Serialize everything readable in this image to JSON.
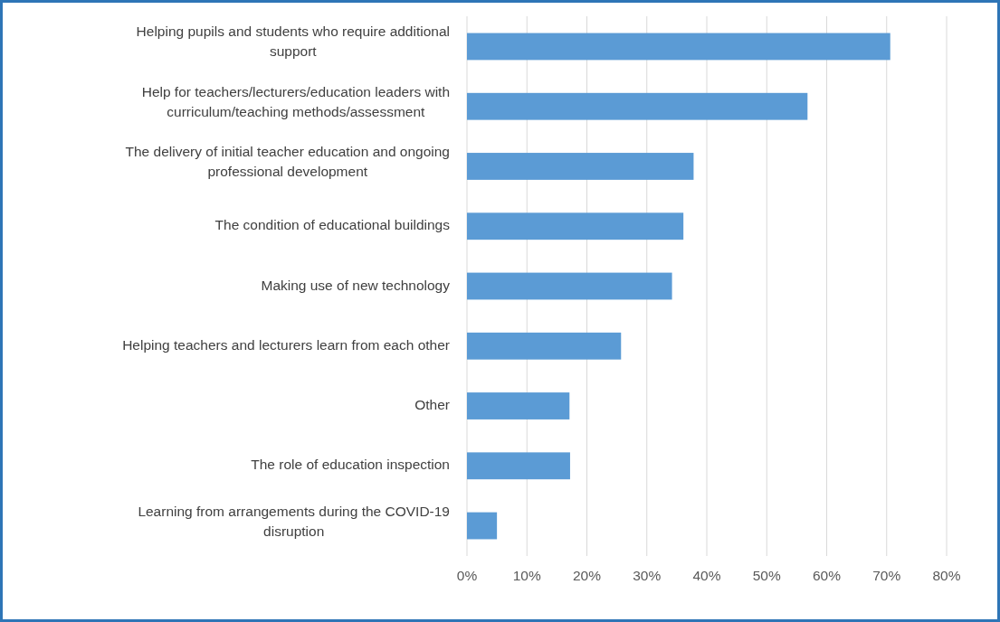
{
  "chart_data": {
    "type": "bar",
    "orientation": "horizontal",
    "categories": [
      "Helping pupils and students who require additional support",
      "Help for teachers/lecturers/education leaders with curriculum/teaching methods/assessment",
      "The delivery of initial teacher education and ongoing professional development",
      "The condition of educational buildings",
      "Making use of new technology",
      "Helping teachers and lecturers learn from each other",
      "Other",
      "The role of education inspection",
      "Learning from arrangements during the COVID-19 disruption"
    ],
    "values": [
      70.6,
      56.8,
      37.8,
      36.1,
      34.2,
      25.7,
      17.1,
      17.2,
      5.0
    ],
    "color": "#5b9bd5",
    "xlim": [
      0,
      80
    ],
    "xticks": [
      {
        "value": 0,
        "label": "0%"
      },
      {
        "value": 10,
        "label": "10%"
      },
      {
        "value": 20,
        "label": "20%"
      },
      {
        "value": 30,
        "label": "30%"
      },
      {
        "value": 40,
        "label": "40%"
      },
      {
        "value": 50,
        "label": "50%"
      },
      {
        "value": 60,
        "label": "60%"
      },
      {
        "value": 70,
        "label": "70%"
      },
      {
        "value": 80,
        "label": "80%"
      }
    ],
    "grid": "x"
  }
}
